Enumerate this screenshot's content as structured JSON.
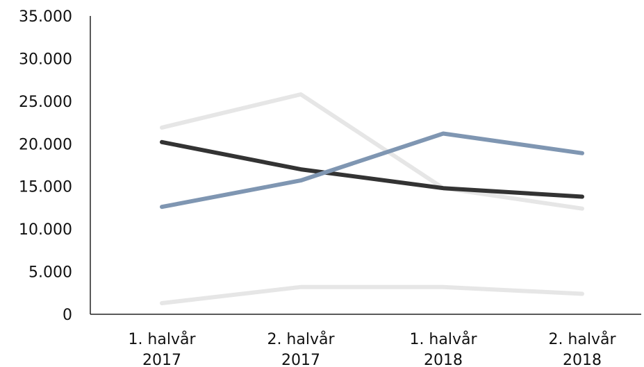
{
  "chart_data": {
    "type": "line",
    "title": "",
    "xlabel": "",
    "ylabel": "",
    "categories": [
      [
        "1. halvår",
        "2017"
      ],
      [
        "2. halvår",
        "2017"
      ],
      [
        "1. halvår",
        "2018"
      ],
      [
        "2. halvår",
        "2018"
      ]
    ],
    "y_ticks": [
      "35.000",
      "30.000",
      "25.000",
      "20.000",
      "15.000",
      "10.000",
      "5.000",
      "0"
    ],
    "y_tick_values": [
      35000,
      30000,
      25000,
      20000,
      15000,
      10000,
      5000,
      0
    ],
    "ylim": [
      0,
      35000
    ],
    "grid": false,
    "legend": "none",
    "series": [
      {
        "color": "#e6e6e6",
        "values": [
          21900,
          25800,
          14800,
          12400
        ]
      },
      {
        "color": "#333333",
        "values": [
          20200,
          17000,
          14800,
          13800
        ]
      },
      {
        "color": "#7f96b2",
        "values": [
          12600,
          15700,
          21200,
          18900
        ]
      },
      {
        "color": "#e6e6e6",
        "values": [
          1300,
          3200,
          3200,
          2400
        ]
      }
    ]
  }
}
